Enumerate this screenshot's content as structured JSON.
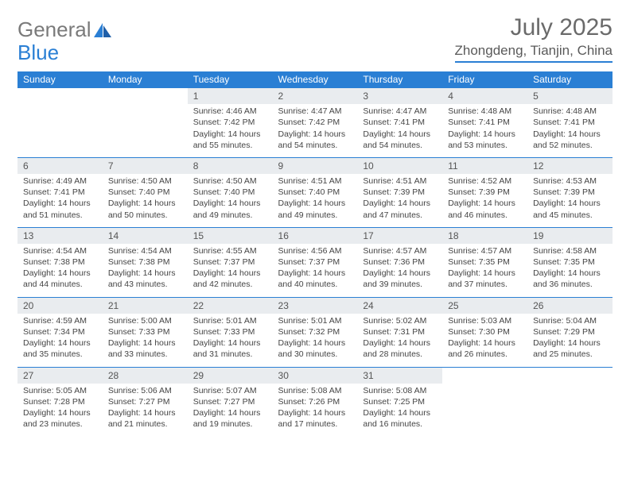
{
  "logo": {
    "text1": "General",
    "text2": "Blue"
  },
  "title": "July 2025",
  "location": "Zhongdeng, Tianjin, China",
  "headers": [
    "Sunday",
    "Monday",
    "Tuesday",
    "Wednesday",
    "Thursday",
    "Friday",
    "Saturday"
  ],
  "colors": {
    "header_bg": "#2a7fd4",
    "header_fg": "#ffffff",
    "daynum_bg": "#e9ecef",
    "border": "#2a7fd4",
    "title_color": "#6a6a6a",
    "text_color": "#444444"
  },
  "typography": {
    "title_fontsize": 30,
    "location_fontsize": 17,
    "header_fontsize": 12,
    "body_fontsize": 10.5
  },
  "layout": {
    "columns": 7,
    "rows": 5,
    "leading_blanks": 2
  },
  "days": [
    {
      "n": 1,
      "sr": "4:46 AM",
      "ss": "7:42 PM",
      "dl": "14 hours and 55 minutes."
    },
    {
      "n": 2,
      "sr": "4:47 AM",
      "ss": "7:42 PM",
      "dl": "14 hours and 54 minutes."
    },
    {
      "n": 3,
      "sr": "4:47 AM",
      "ss": "7:41 PM",
      "dl": "14 hours and 54 minutes."
    },
    {
      "n": 4,
      "sr": "4:48 AM",
      "ss": "7:41 PM",
      "dl": "14 hours and 53 minutes."
    },
    {
      "n": 5,
      "sr": "4:48 AM",
      "ss": "7:41 PM",
      "dl": "14 hours and 52 minutes."
    },
    {
      "n": 6,
      "sr": "4:49 AM",
      "ss": "7:41 PM",
      "dl": "14 hours and 51 minutes."
    },
    {
      "n": 7,
      "sr": "4:50 AM",
      "ss": "7:40 PM",
      "dl": "14 hours and 50 minutes."
    },
    {
      "n": 8,
      "sr": "4:50 AM",
      "ss": "7:40 PM",
      "dl": "14 hours and 49 minutes."
    },
    {
      "n": 9,
      "sr": "4:51 AM",
      "ss": "7:40 PM",
      "dl": "14 hours and 49 minutes."
    },
    {
      "n": 10,
      "sr": "4:51 AM",
      "ss": "7:39 PM",
      "dl": "14 hours and 47 minutes."
    },
    {
      "n": 11,
      "sr": "4:52 AM",
      "ss": "7:39 PM",
      "dl": "14 hours and 46 minutes."
    },
    {
      "n": 12,
      "sr": "4:53 AM",
      "ss": "7:39 PM",
      "dl": "14 hours and 45 minutes."
    },
    {
      "n": 13,
      "sr": "4:54 AM",
      "ss": "7:38 PM",
      "dl": "14 hours and 44 minutes."
    },
    {
      "n": 14,
      "sr": "4:54 AM",
      "ss": "7:38 PM",
      "dl": "14 hours and 43 minutes."
    },
    {
      "n": 15,
      "sr": "4:55 AM",
      "ss": "7:37 PM",
      "dl": "14 hours and 42 minutes."
    },
    {
      "n": 16,
      "sr": "4:56 AM",
      "ss": "7:37 PM",
      "dl": "14 hours and 40 minutes."
    },
    {
      "n": 17,
      "sr": "4:57 AM",
      "ss": "7:36 PM",
      "dl": "14 hours and 39 minutes."
    },
    {
      "n": 18,
      "sr": "4:57 AM",
      "ss": "7:35 PM",
      "dl": "14 hours and 37 minutes."
    },
    {
      "n": 19,
      "sr": "4:58 AM",
      "ss": "7:35 PM",
      "dl": "14 hours and 36 minutes."
    },
    {
      "n": 20,
      "sr": "4:59 AM",
      "ss": "7:34 PM",
      "dl": "14 hours and 35 minutes."
    },
    {
      "n": 21,
      "sr": "5:00 AM",
      "ss": "7:33 PM",
      "dl": "14 hours and 33 minutes."
    },
    {
      "n": 22,
      "sr": "5:01 AM",
      "ss": "7:33 PM",
      "dl": "14 hours and 31 minutes."
    },
    {
      "n": 23,
      "sr": "5:01 AM",
      "ss": "7:32 PM",
      "dl": "14 hours and 30 minutes."
    },
    {
      "n": 24,
      "sr": "5:02 AM",
      "ss": "7:31 PM",
      "dl": "14 hours and 28 minutes."
    },
    {
      "n": 25,
      "sr": "5:03 AM",
      "ss": "7:30 PM",
      "dl": "14 hours and 26 minutes."
    },
    {
      "n": 26,
      "sr": "5:04 AM",
      "ss": "7:29 PM",
      "dl": "14 hours and 25 minutes."
    },
    {
      "n": 27,
      "sr": "5:05 AM",
      "ss": "7:28 PM",
      "dl": "14 hours and 23 minutes."
    },
    {
      "n": 28,
      "sr": "5:06 AM",
      "ss": "7:27 PM",
      "dl": "14 hours and 21 minutes."
    },
    {
      "n": 29,
      "sr": "5:07 AM",
      "ss": "7:27 PM",
      "dl": "14 hours and 19 minutes."
    },
    {
      "n": 30,
      "sr": "5:08 AM",
      "ss": "7:26 PM",
      "dl": "14 hours and 17 minutes."
    },
    {
      "n": 31,
      "sr": "5:08 AM",
      "ss": "7:25 PM",
      "dl": "14 hours and 16 minutes."
    }
  ],
  "labels": {
    "sunrise": "Sunrise:",
    "sunset": "Sunset:",
    "daylight": "Daylight:"
  }
}
